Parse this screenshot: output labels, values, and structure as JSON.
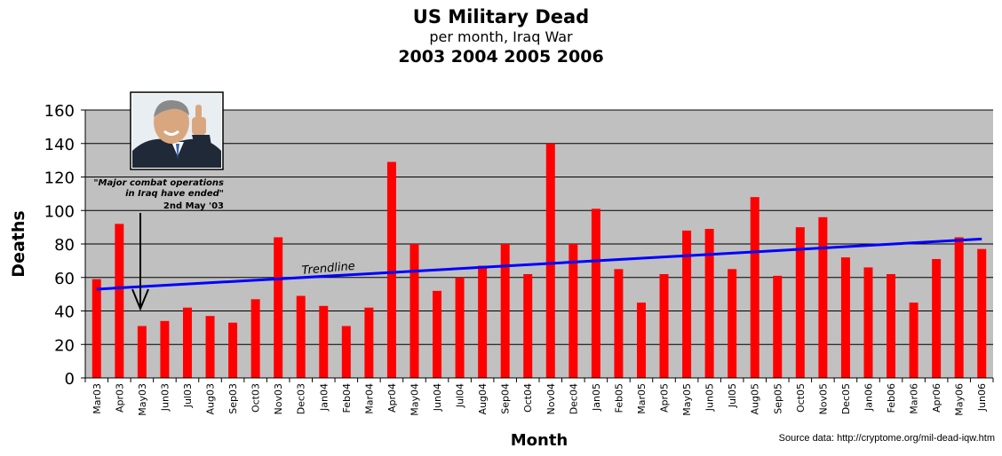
{
  "chart_data": {
    "type": "bar",
    "title": "US Military Dead",
    "subtitle": "per month, Iraq War",
    "subtitle2": "2003 2004 2005 2006",
    "xlabel": "Month",
    "ylabel": "Deaths",
    "ylim": [
      0,
      160
    ],
    "yticks": [
      0,
      20,
      40,
      60,
      80,
      100,
      120,
      140,
      160
    ],
    "grid": true,
    "categories": [
      "Mar03",
      "Apr03",
      "May03",
      "Jun03",
      "Jul03",
      "Aug03",
      "Sep03",
      "Oct03",
      "Nov03",
      "Dec03",
      "Jan04",
      "Feb04",
      "Mar04",
      "Apr04",
      "May04",
      "Jun04",
      "Jul04",
      "Aug04",
      "Sep04",
      "Oct04",
      "Nov04",
      "Dec04",
      "Jan05",
      "Feb05",
      "Mar05",
      "Apr05",
      "May05",
      "Jun05",
      "Jul05",
      "Aug05",
      "Sep05",
      "Oct05",
      "Nov05",
      "Dec05",
      "Jan06",
      "Feb06",
      "Mar06",
      "Apr06",
      "May06",
      "Jun06"
    ],
    "series": [
      {
        "values": [
          59,
          92,
          31,
          34,
          42,
          37,
          33,
          47,
          84,
          49,
          43,
          31,
          42,
          129,
          80,
          52,
          60,
          67,
          80,
          62,
          140,
          80,
          101,
          65,
          45,
          62,
          88,
          89,
          65,
          108,
          61,
          90,
          96,
          72,
          66,
          62,
          45,
          71,
          84,
          77
        ]
      }
    ],
    "trendline": {
      "label": "Trendline",
      "start": 53,
      "end": 83
    },
    "annotation": {
      "line1": "\"Major combat operations",
      "line2": "in Iraq have ended\"",
      "line3": "2nd May '03",
      "target": "May03"
    },
    "source": "Source data: http://cryptome.org/mil-dead-iqw.htm"
  },
  "colors": {
    "plot_bg": "#C0C0C0",
    "bar": "#FF0000",
    "trend": "#0000FF",
    "grid": "#000000"
  },
  "icons": {
    "photo": "person-thumbs-up-photo",
    "arrow": "arrow-down-icon"
  }
}
